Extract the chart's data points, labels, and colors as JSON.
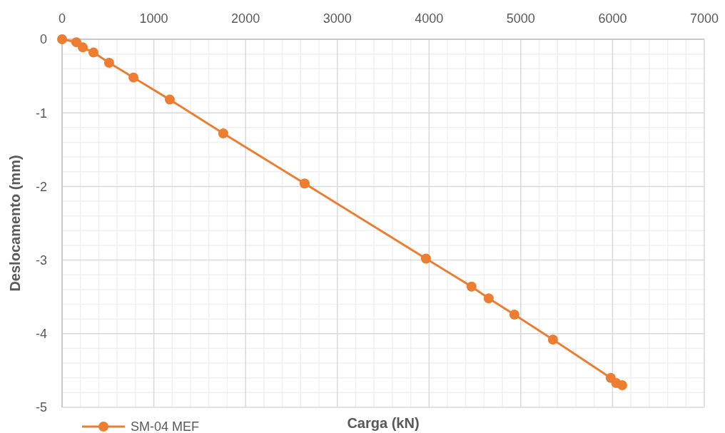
{
  "chart_data": {
    "type": "line",
    "xlabel": "Carga (kN)",
    "ylabel": "Deslocamento (mm)",
    "x": [
      0,
      155,
      225,
      342,
      513,
      778,
      1174,
      1757,
      2644,
      3966,
      4463,
      4650,
      4930,
      5350,
      5980,
      6040,
      6105
    ],
    "series": [
      {
        "name": "SM-04 MEF",
        "color": "#ed7d31",
        "values": [
          0,
          -0.04,
          -0.11,
          -0.18,
          -0.32,
          -0.52,
          -0.82,
          -1.28,
          -1.96,
          -2.98,
          -3.36,
          -3.52,
          -3.74,
          -4.08,
          -4.6,
          -4.67,
          -4.7
        ]
      }
    ],
    "xlim": [
      0,
      7000
    ],
    "xticks": [
      0,
      1000,
      2000,
      3000,
      4000,
      5000,
      6000,
      7000
    ],
    "ylim": [
      -5,
      0
    ],
    "yticks": [
      0,
      -1,
      -2,
      -3,
      -4,
      -5
    ],
    "grid": true,
    "legend": "bottom left",
    "marker": "circle",
    "line_style": "solid"
  }
}
